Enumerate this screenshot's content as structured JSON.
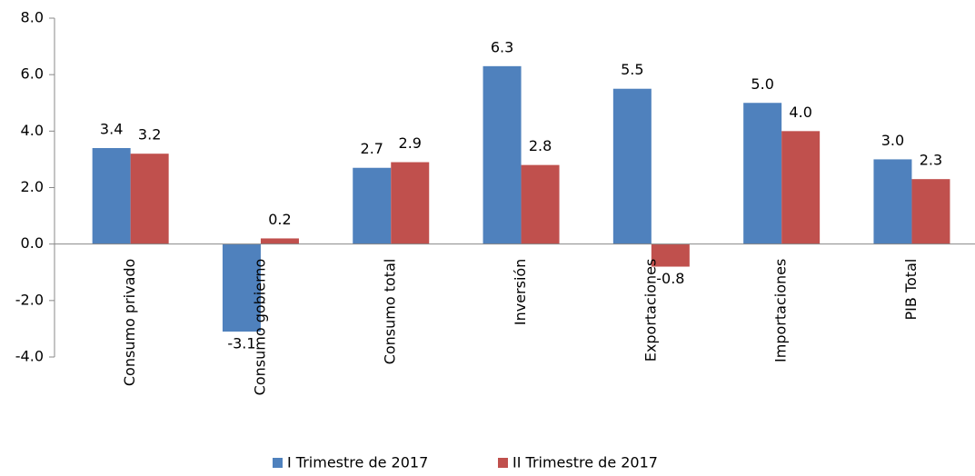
{
  "chart_data": {
    "type": "bar",
    "categories": [
      "Consumo privado",
      "Consumo gobierno",
      "Consumo total",
      "Inversión",
      "Exportaciones",
      "Importaciones",
      "PIB Total"
    ],
    "series": [
      {
        "name": "I Trimestre de 2017",
        "color": "#4f81bd",
        "values": [
          3.4,
          -3.1,
          2.7,
          6.3,
          5.5,
          5.0,
          3.0
        ],
        "value_labels": [
          "3.4",
          "-3.1",
          "2.7",
          "6.3",
          "5.5",
          "5.0",
          "3.0"
        ]
      },
      {
        "name": "II Trimestre de 2017",
        "color": "#c0504d",
        "values": [
          3.2,
          0.2,
          2.9,
          2.8,
          -0.8,
          4.0,
          2.3
        ],
        "value_labels": [
          "3.2",
          "0.2",
          "2.9",
          "2.8",
          "-0.8",
          "4.0",
          "2.3"
        ]
      }
    ],
    "ylim": [
      -4,
      8
    ],
    "yticks": [
      {
        "value": -4,
        "label": "-4.0"
      },
      {
        "value": -2,
        "label": "-2.0"
      },
      {
        "value": 0,
        "label": "0.0"
      },
      {
        "value": 2,
        "label": "2.0"
      },
      {
        "value": 4,
        "label": "4.0"
      },
      {
        "value": 6,
        "label": "6.0"
      },
      {
        "value": 8,
        "label": "8.0"
      }
    ],
    "legend": "bottom"
  }
}
